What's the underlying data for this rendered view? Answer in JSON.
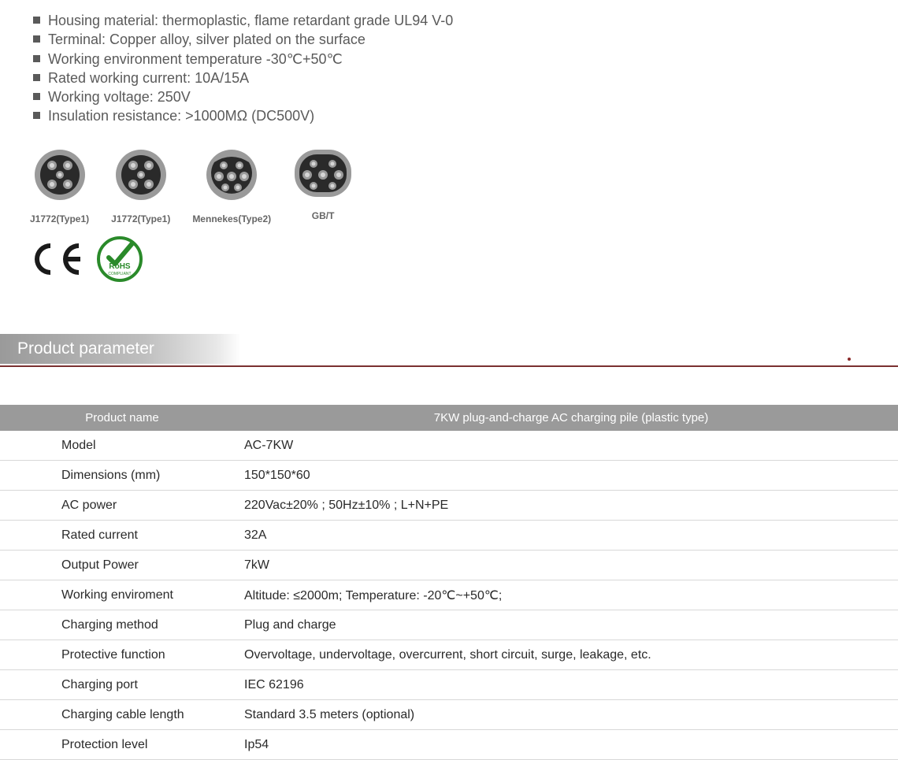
{
  "specs": {
    "items": [
      "Housing material: thermoplastic, flame retardant grade UL94 V-0",
      "Terminal: Copper alloy, silver plated on the surface",
      "Working environment temperature -30℃+50℃",
      "Rated working current: 10A/15A",
      "Working voltage: 250V",
      "Insulation resistance: >1000MΩ (DC500V)"
    ],
    "font_size": 18,
    "text_color": "#5a5a5a",
    "bullet_color": "#5a5a5a"
  },
  "connectors": {
    "items": [
      {
        "label": "J1772(Type1)",
        "kind": "j1772"
      },
      {
        "label": "J1772(Type1)",
        "kind": "j1772"
      },
      {
        "label": "Mennekes(Type2)",
        "kind": "mennekes"
      },
      {
        "label": "GB/T",
        "kind": "gbt"
      }
    ],
    "ring_color": "#9a9a9a",
    "face_color": "#2a2a2a",
    "pin_outer": "#9a9a9a",
    "pin_inner": "#d6d6d6",
    "label_font_size": 12,
    "label_color": "#666666"
  },
  "certs": {
    "ce_color": "#1a1a1a",
    "rohs_ring_color": "#2a8a2a",
    "rohs_text": "RoHS",
    "rohs_sub": "COMPLIANT"
  },
  "section": {
    "title": "Product parameter",
    "bg_gradient_from": "#9a9a9a",
    "bg_gradient_to": "#ffffff",
    "underline_color": "#7a3030",
    "dot_color": "#8a2a2a",
    "text_color": "#ffffff",
    "font_size": 21
  },
  "table": {
    "header_bg": "#9a9a9a",
    "header_color": "#ffffff",
    "border_color": "#d8d8d8",
    "label_col_width": 310,
    "headers": {
      "name": "Product name",
      "value": "7KW plug-and-charge AC charging pile (plastic type)"
    },
    "rows": [
      {
        "label": "Model",
        "value": "AC-7KW"
      },
      {
        "label": "Dimensions (mm)",
        "value": "150*150*60"
      },
      {
        "label": "AC power",
        "value": "220Vac±20% ; 50Hz±10% ; L+N+PE"
      },
      {
        "label": "Rated current",
        "value": "32A"
      },
      {
        "label": "Output Power",
        "value": "7kW"
      },
      {
        "label": "Working enviroment",
        "value": "Altitude: ≤2000m; Temperature: -20℃~+50℃;"
      },
      {
        "label": "Charging method",
        "value": "Plug and charge"
      },
      {
        "label": "Protective function",
        "value": "Overvoltage, undervoltage, overcurrent, short circuit, surge, leakage, etc."
      },
      {
        "label": "Charging port",
        "value": "IEC   62196"
      },
      {
        "label": "Charging cable length",
        "value": "Standard 3.5 meters (optional)"
      },
      {
        "label": "Protection level",
        "value": "Ip54"
      }
    ]
  }
}
